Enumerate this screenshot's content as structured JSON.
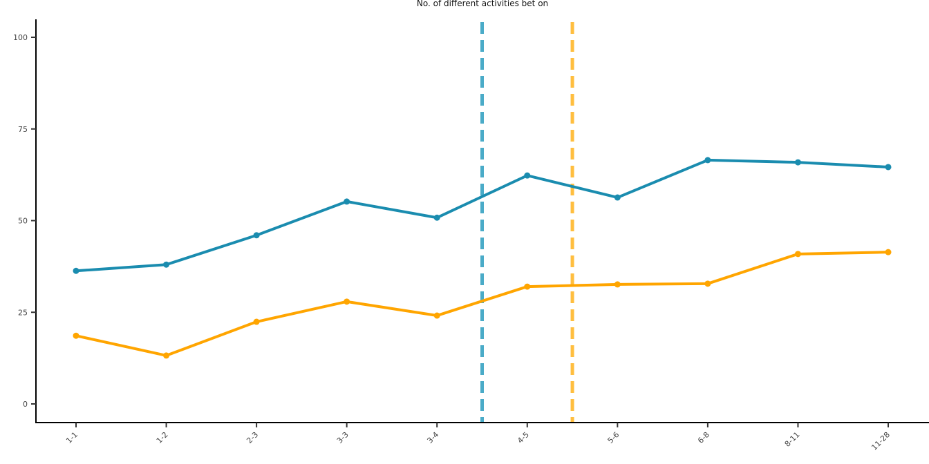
{
  "chart_data": {
    "type": "line",
    "title": "No. of different activities bet on",
    "xlabel": "",
    "ylabel": "",
    "categories": [
      "1-1",
      "1-2",
      "2-3",
      "3-3",
      "3-4",
      "4-5",
      "5-6",
      "6-8",
      "8-11",
      "11-28"
    ],
    "ylim": [
      0,
      100
    ],
    "yticks": [
      0,
      25,
      50,
      75,
      100
    ],
    "grid": false,
    "series": [
      {
        "name": "blue",
        "color": "#1a8caf",
        "values": [
          36.3,
          38.0,
          46.0,
          55.2,
          50.8,
          62.3,
          56.3,
          66.5,
          65.9,
          64.6
        ]
      },
      {
        "name": "orange",
        "color": "#ffa500",
        "values": [
          18.6,
          13.2,
          22.4,
          27.9,
          24.1,
          32.0,
          32.6,
          32.8,
          40.9,
          41.4
        ]
      }
    ],
    "reference_lines": [
      {
        "x_index": 4.5,
        "color": "#4aabc8",
        "style": "dashed"
      },
      {
        "x_index": 5.5,
        "color": "#ffbe3f",
        "style": "dashed"
      }
    ]
  }
}
